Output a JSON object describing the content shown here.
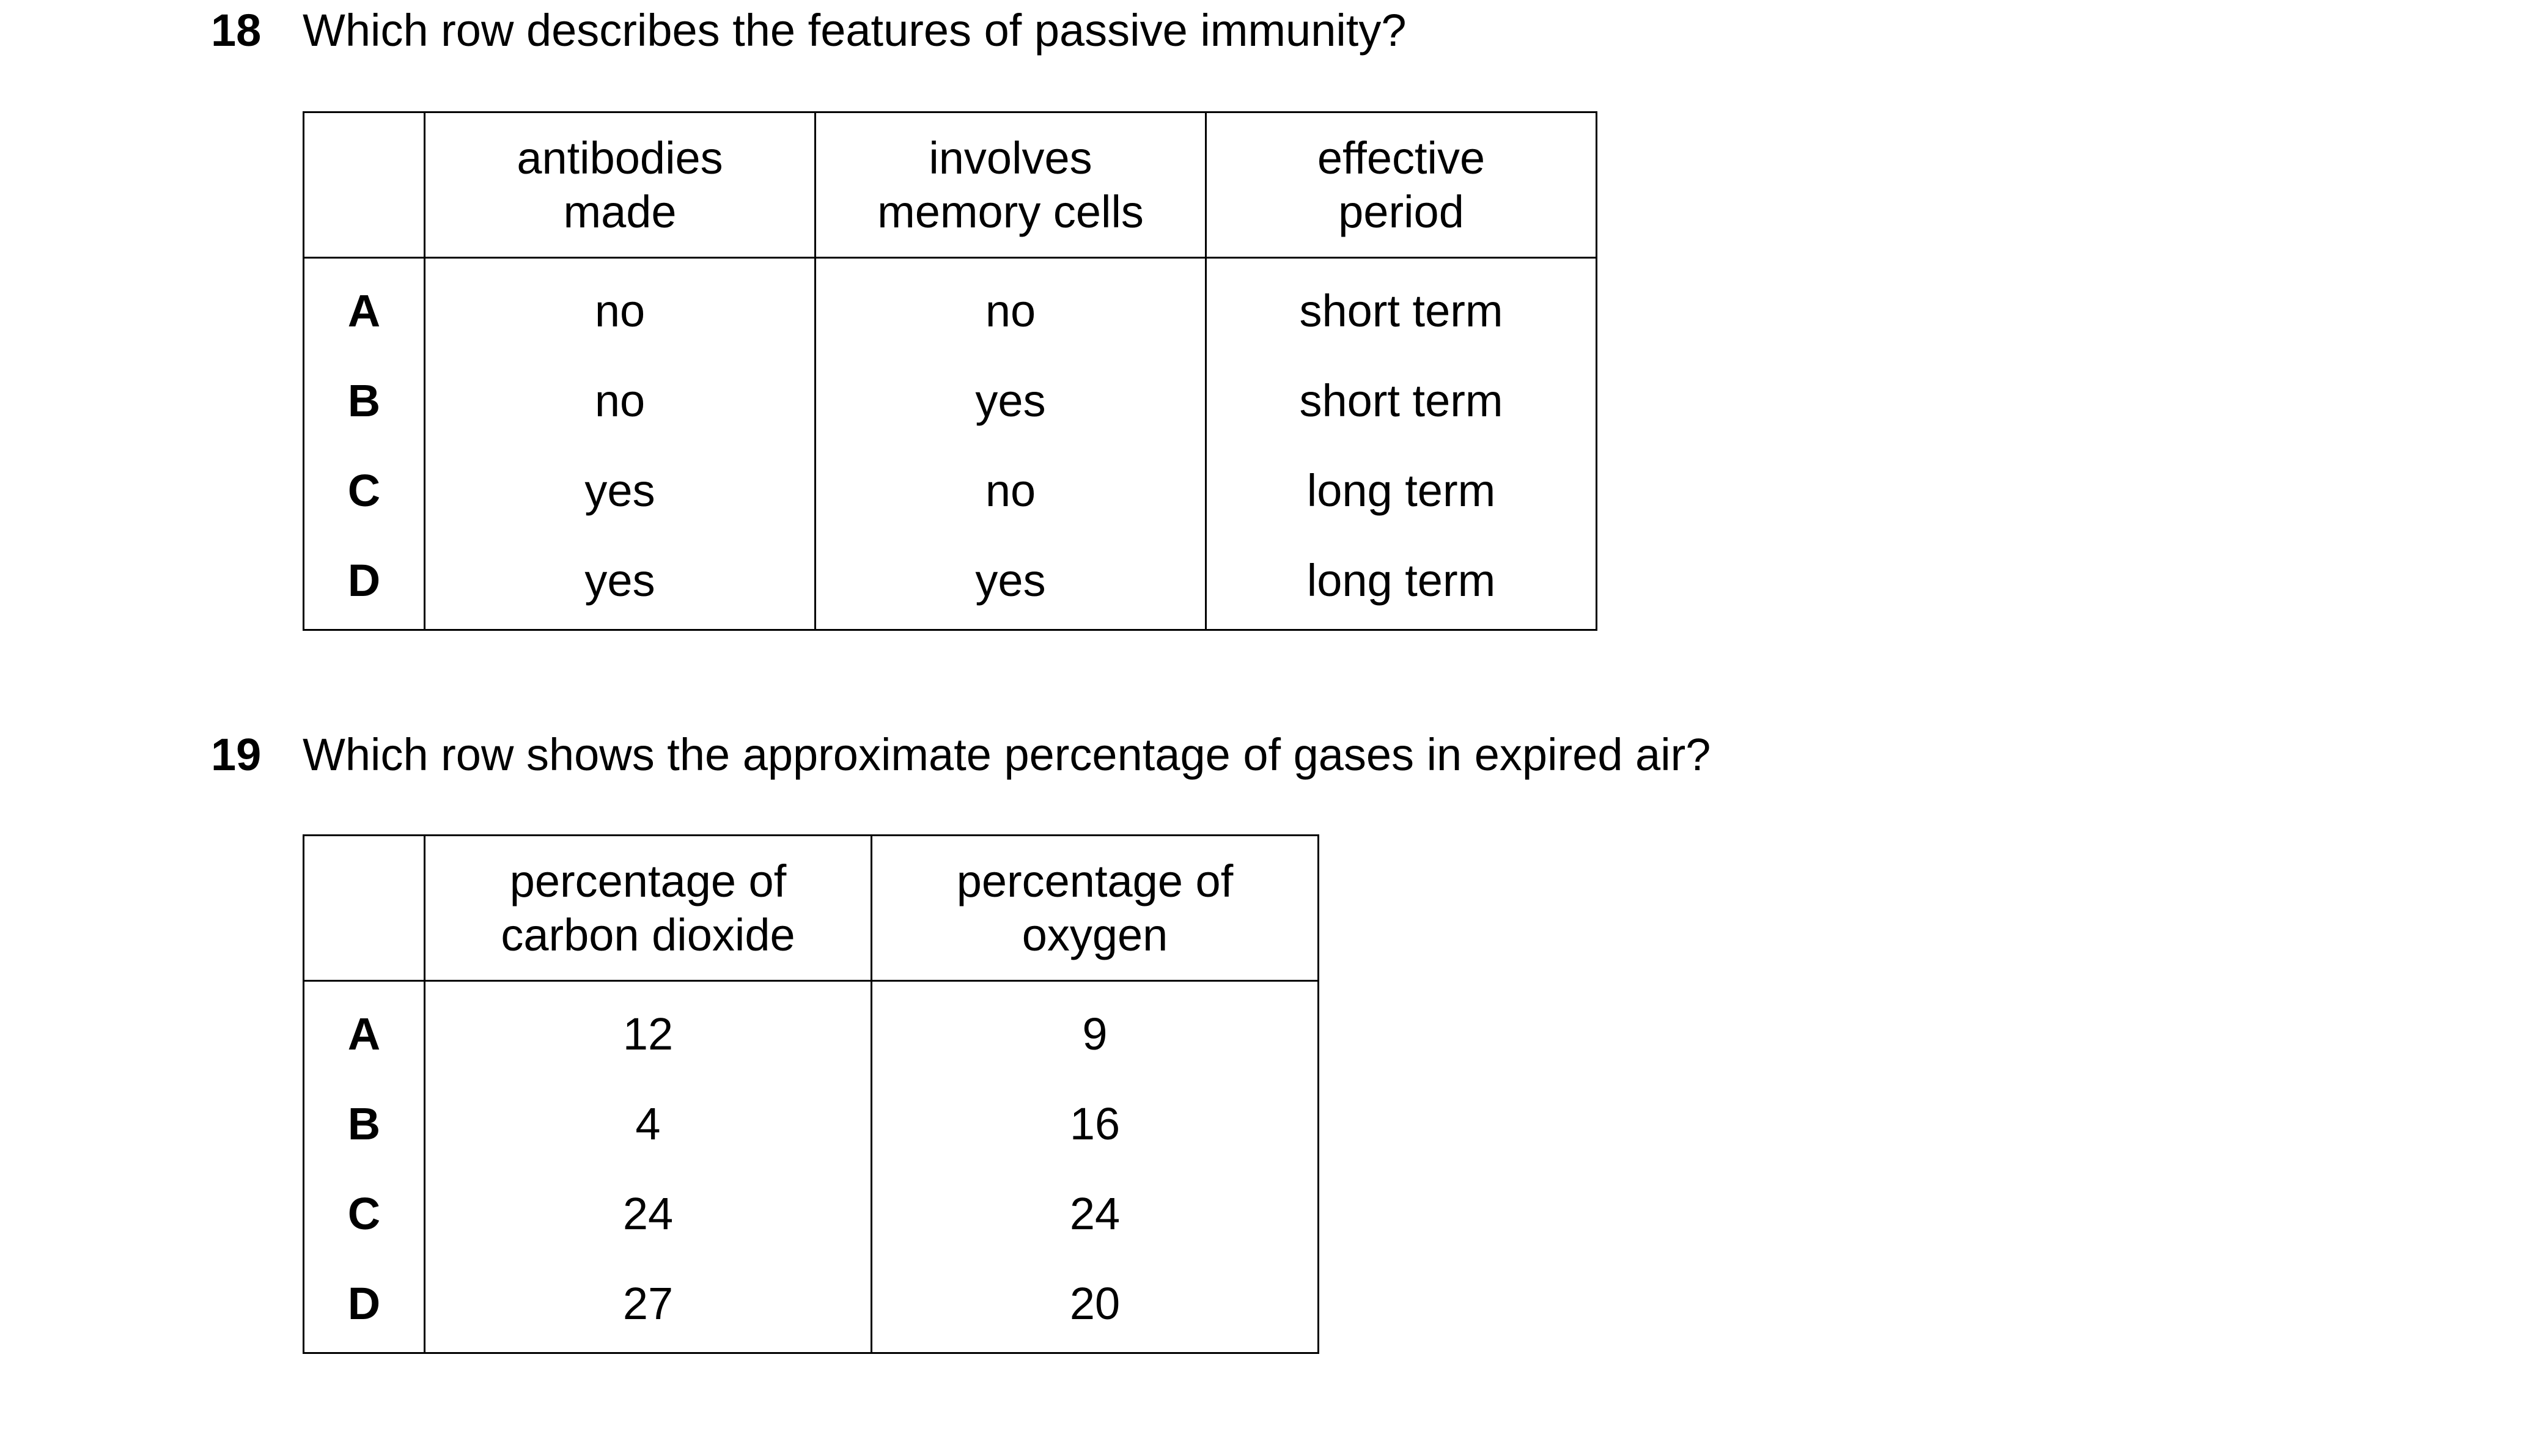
{
  "q18": {
    "number": "18",
    "text": "Which row describes the features of passive immunity?",
    "headers": [
      "",
      "antibodies\nmade",
      "involves\nmemory cells",
      "effective\nperiod"
    ],
    "rows": [
      {
        "label": "A",
        "cells": [
          "no",
          "no",
          "short term"
        ]
      },
      {
        "label": "B",
        "cells": [
          "no",
          "yes",
          "short term"
        ]
      },
      {
        "label": "C",
        "cells": [
          "yes",
          "no",
          "long term"
        ]
      },
      {
        "label": "D",
        "cells": [
          "yes",
          "yes",
          "long term"
        ]
      }
    ]
  },
  "q19": {
    "number": "19",
    "text": "Which row shows the approximate percentage of gases in expired air?",
    "headers": [
      "",
      "percentage of\ncarbon dioxide",
      "percentage of\noxygen"
    ],
    "rows": [
      {
        "label": "A",
        "cells": [
          "12",
          "9"
        ]
      },
      {
        "label": "B",
        "cells": [
          "4",
          "16"
        ]
      },
      {
        "label": "C",
        "cells": [
          "24",
          "24"
        ]
      },
      {
        "label": "D",
        "cells": [
          "27",
          "20"
        ]
      }
    ]
  }
}
